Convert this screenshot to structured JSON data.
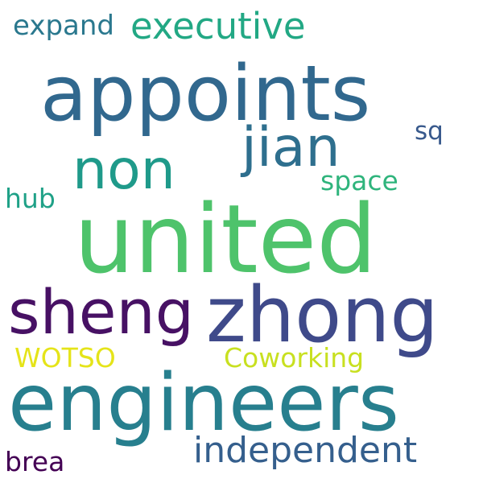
{
  "words": [
    {
      "text": "appoints",
      "color": "#31688e"
    },
    {
      "text": "united",
      "color": "#4ec36b"
    },
    {
      "text": "zhong",
      "color": "#3f4a8a"
    },
    {
      "text": "engineers",
      "color": "#277f8e"
    },
    {
      "text": "sheng",
      "color": "#471164"
    },
    {
      "text": "non",
      "color": "#1f9a8a"
    },
    {
      "text": "jian",
      "color": "#2e6f8e"
    },
    {
      "text": "executive",
      "color": "#22a884"
    },
    {
      "text": "independent",
      "color": "#355f8d"
    },
    {
      "text": "expand",
      "color": "#2a788e"
    },
    {
      "text": "Coworking",
      "color": "#c8e020"
    },
    {
      "text": "WOTSO",
      "color": "#e5e419"
    },
    {
      "text": "space",
      "color": "#2fb47c"
    },
    {
      "text": "hub",
      "color": "#1fa187"
    },
    {
      "text": "sq",
      "color": "#38598c"
    },
    {
      "text": "brea",
      "color": "#440154"
    }
  ]
}
